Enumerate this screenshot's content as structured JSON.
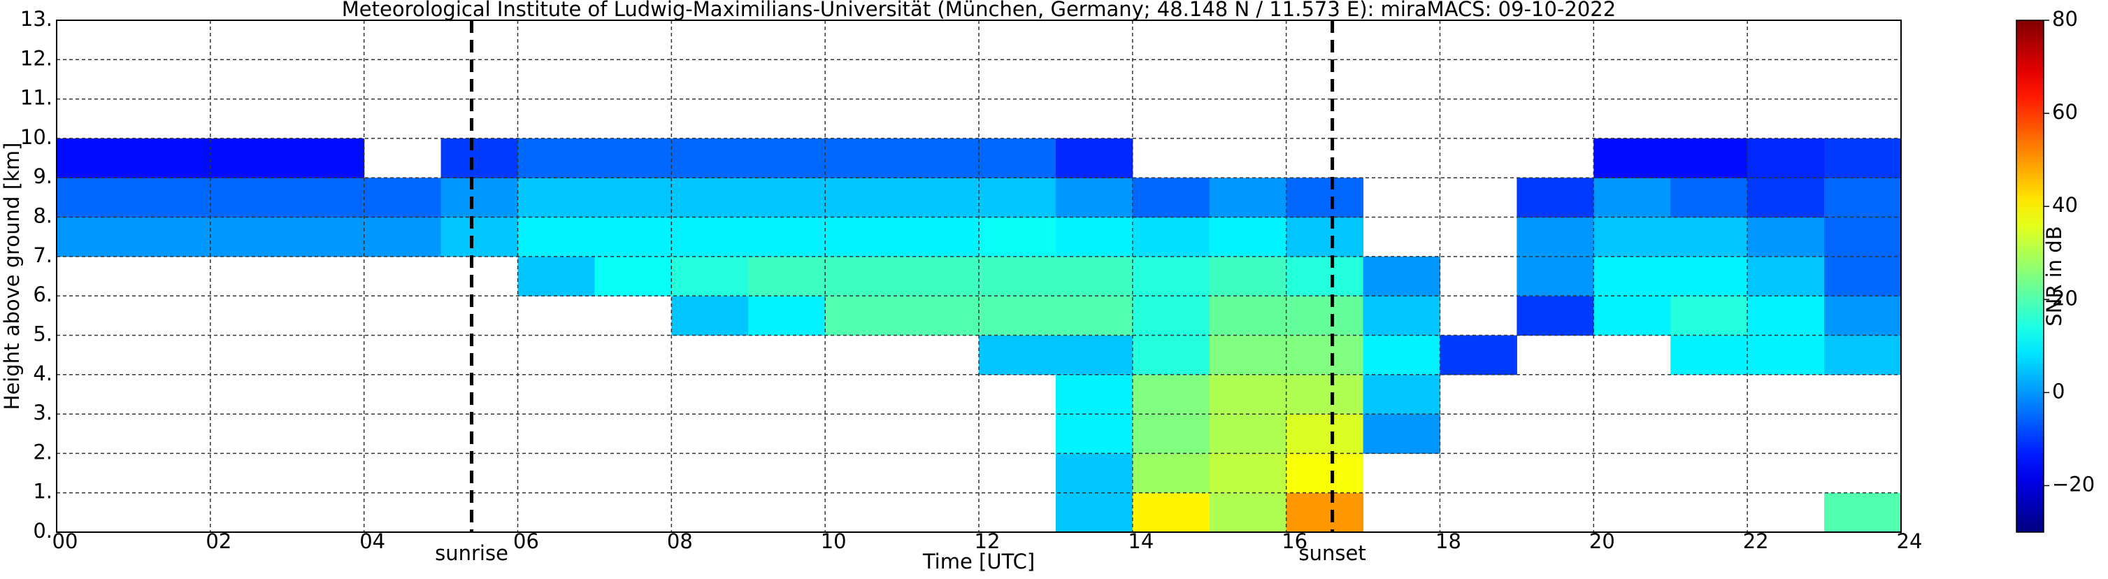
{
  "chart_data": {
    "type": "heatmap",
    "title": "Meteorological Institute of Ludwig-Maximilians-Universität (München, Germany; 48.148 N / 11.573 E):    miraMACS: 09-10-2022",
    "x_label": "Time [UTC]",
    "y_label": "Height above ground [km]",
    "colorbar_label": "SNR in dB",
    "xlim": [
      0,
      24
    ],
    "ylim": [
      0,
      13
    ],
    "clim": [
      -30,
      80
    ],
    "colormap": "jet",
    "grid": true,
    "xticks": [
      {
        "value": 0,
        "label": "00"
      },
      {
        "value": 2,
        "label": "02"
      },
      {
        "value": 4,
        "label": "04"
      },
      {
        "value": 6,
        "label": "06"
      },
      {
        "value": 8,
        "label": "08"
      },
      10,
      12,
      14,
      16,
      18,
      20,
      22,
      24
    ],
    "yticks": [
      {
        "value": 0,
        "label": "0."
      },
      {
        "value": 1,
        "label": "1."
      },
      {
        "value": 2,
        "label": "2."
      },
      {
        "value": 3,
        "label": "3."
      },
      {
        "value": 4,
        "label": "4."
      },
      {
        "value": 5,
        "label": "5."
      },
      {
        "value": 6,
        "label": "6."
      },
      {
        "value": 7,
        "label": "7."
      },
      {
        "value": 8,
        "label": "8."
      },
      {
        "value": 9,
        "label": "9."
      },
      {
        "value": 10,
        "label": "10."
      },
      {
        "value": 11,
        "label": "11."
      },
      {
        "value": 12,
        "label": "12."
      },
      {
        "value": 13,
        "label": "13."
      }
    ],
    "cticks": [
      {
        "value": -20,
        "label": "−20"
      },
      0,
      20,
      40,
      60,
      80
    ],
    "annotations": [
      {
        "text": "sunrise",
        "x": 5.4
      },
      {
        "text": "sunset",
        "x": 16.6
      }
    ],
    "x_edges": [
      0,
      1,
      2,
      3,
      4,
      5,
      6,
      7,
      8,
      9,
      10,
      11,
      12,
      13,
      14,
      15,
      16,
      17,
      18,
      19,
      20,
      21,
      22,
      23,
      24
    ],
    "y_edges": [
      0,
      1,
      2,
      3,
      4,
      5,
      6,
      7,
      8,
      9,
      10,
      11,
      12,
      13
    ],
    "z": [
      [
        null,
        null,
        null,
        null,
        null,
        null,
        null,
        null,
        null,
        null,
        null,
        null,
        null,
        5,
        40,
        30,
        50,
        null,
        null,
        null,
        null,
        null,
        null,
        20
      ],
      [
        null,
        null,
        null,
        null,
        null,
        null,
        null,
        null,
        null,
        null,
        null,
        null,
        null,
        5,
        28,
        32,
        38,
        null,
        null,
        null,
        null,
        null,
        null,
        null
      ],
      [
        null,
        null,
        null,
        null,
        null,
        null,
        null,
        null,
        null,
        null,
        null,
        null,
        null,
        10,
        25,
        30,
        35,
        0,
        null,
        null,
        null,
        null,
        null,
        null
      ],
      [
        null,
        null,
        null,
        null,
        null,
        null,
        null,
        null,
        null,
        null,
        null,
        null,
        null,
        10,
        25,
        30,
        30,
        5,
        null,
        null,
        null,
        null,
        null,
        null
      ],
      [
        null,
        null,
        null,
        null,
        null,
        null,
        null,
        null,
        null,
        null,
        null,
        null,
        5,
        5,
        15,
        25,
        25,
        10,
        -10,
        null,
        null,
        10,
        10,
        5
      ],
      [
        null,
        null,
        null,
        null,
        null,
        null,
        null,
        null,
        5,
        10,
        20,
        20,
        20,
        20,
        15,
        22,
        22,
        5,
        null,
        -10,
        10,
        15,
        10,
        0
      ],
      [
        null,
        null,
        null,
        null,
        null,
        null,
        5,
        12,
        15,
        18,
        18,
        18,
        18,
        18,
        15,
        18,
        15,
        0,
        null,
        0,
        10,
        10,
        5,
        -5
      ],
      [
        0,
        0,
        0,
        0,
        0,
        5,
        10,
        10,
        10,
        10,
        10,
        10,
        12,
        10,
        8,
        10,
        5,
        null,
        null,
        0,
        5,
        5,
        0,
        -5
      ],
      [
        -5,
        -5,
        -5,
        -5,
        -5,
        0,
        5,
        5,
        5,
        5,
        5,
        5,
        5,
        0,
        -5,
        0,
        -5,
        null,
        null,
        -10,
        0,
        -5,
        -10,
        -5
      ],
      [
        -15,
        -15,
        -15,
        -15,
        null,
        -10,
        -5,
        -5,
        -5,
        -5,
        -5,
        -5,
        -5,
        -12,
        null,
        null,
        null,
        null,
        null,
        null,
        -15,
        -15,
        -12,
        -10
      ],
      [
        null,
        null,
        null,
        null,
        null,
        null,
        null,
        null,
        null,
        null,
        null,
        null,
        null,
        null,
        null,
        null,
        null,
        null,
        null,
        null,
        null,
        null,
        null,
        null
      ],
      [
        null,
        null,
        null,
        null,
        null,
        null,
        null,
        null,
        null,
        null,
        null,
        null,
        null,
        null,
        null,
        null,
        null,
        null,
        null,
        null,
        null,
        null,
        null,
        null
      ],
      [
        null,
        null,
        null,
        null,
        null,
        null,
        null,
        null,
        null,
        null,
        null,
        null,
        null,
        null,
        null,
        null,
        null,
        null,
        null,
        null,
        null,
        null,
        null,
        null
      ]
    ]
  }
}
